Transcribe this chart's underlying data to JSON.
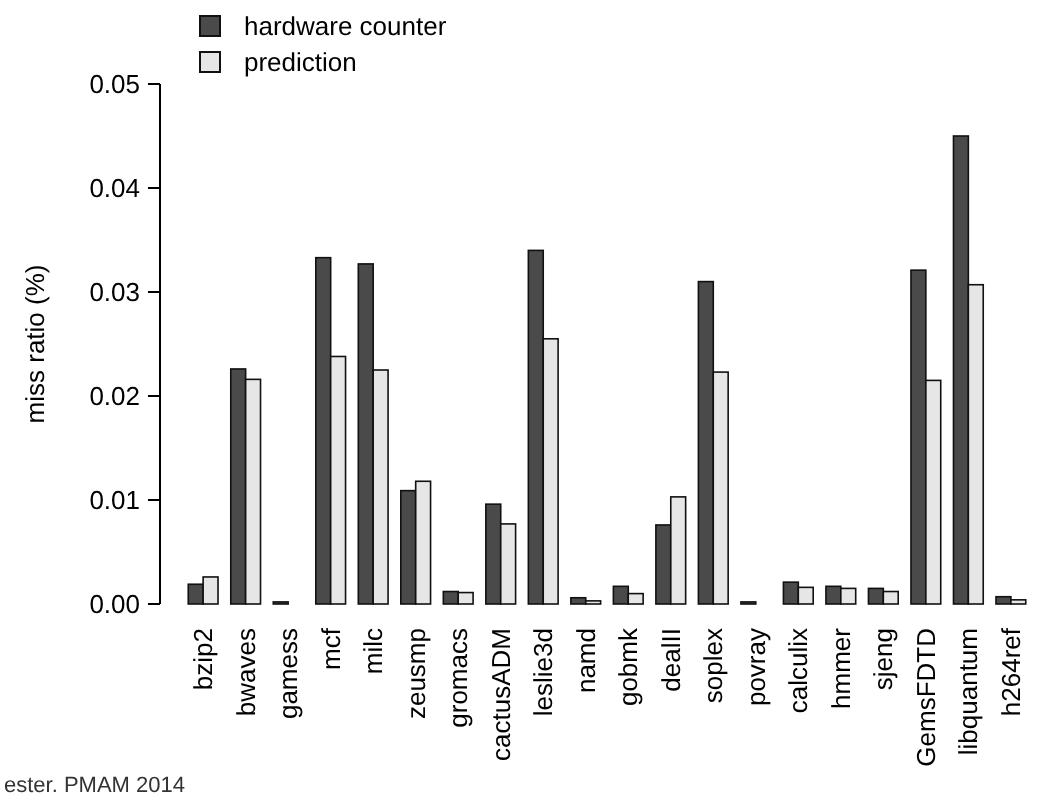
{
  "chart_data": {
    "type": "bar",
    "ylabel": "miss ratio (%)",
    "categories": [
      "bzip2",
      "bwaves",
      "gamess",
      "mcf",
      "milc",
      "zeusmp",
      "gromacs",
      "cactusADM",
      "leslie3d",
      "namd",
      "gobmk",
      "dealII",
      "soplex",
      "povray",
      "calculix",
      "hmmer",
      "sjeng",
      "GemsFDTD",
      "libquantum",
      "h264ref"
    ],
    "series": [
      {
        "name": "hardware counter",
        "color": "#4a4a4a",
        "values": [
          0.0019,
          0.0226,
          0.0002,
          0.0333,
          0.0327,
          0.0109,
          0.0012,
          0.0096,
          0.034,
          0.0006,
          0.0017,
          0.0076,
          0.031,
          0.0002,
          0.0021,
          0.0017,
          0.0015,
          0.0321,
          0.045,
          0.0007
        ]
      },
      {
        "name": "prediction",
        "color": "#e6e6e6",
        "values": [
          0.0026,
          0.0216,
          null,
          0.0238,
          0.0225,
          0.0118,
          0.0011,
          0.0077,
          0.0255,
          0.0003,
          0.001,
          0.0103,
          0.0223,
          null,
          0.0016,
          0.0015,
          0.0012,
          0.0215,
          0.0307,
          0.0004
        ]
      }
    ],
    "ylim": [
      0,
      0.05
    ],
    "yticks": [
      {
        "value": 0,
        "label": "0.00"
      },
      {
        "value": 0.01,
        "label": "0.01"
      },
      {
        "value": 0.02,
        "label": "0.02"
      },
      {
        "value": 0.03,
        "label": "0.03"
      },
      {
        "value": 0.04,
        "label": "0.04"
      },
      {
        "value": 0.05,
        "label": "0.05"
      }
    ],
    "legend": "top left",
    "grid": false,
    "annotations": [
      "ester. PMAM 2014"
    ]
  }
}
